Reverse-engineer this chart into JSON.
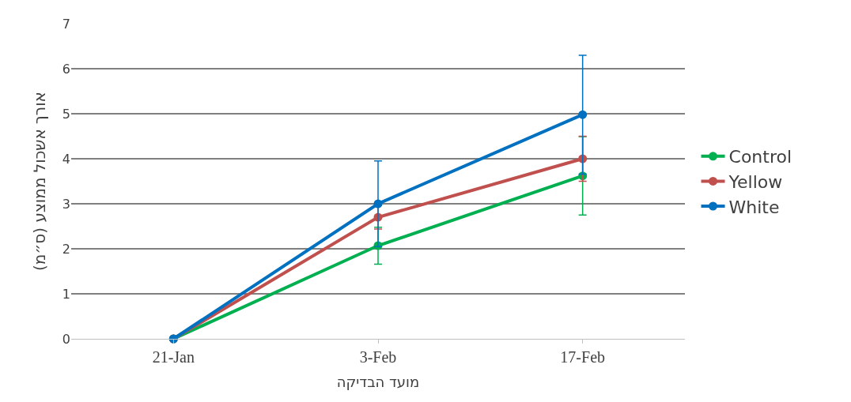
{
  "chart_data": {
    "type": "line",
    "xlabel": "מועד הבדיקה",
    "ylabel": "אורך אשכול ממוצע (ס״מ)",
    "categories": [
      "21-Jan",
      "3-Feb",
      "17-Feb"
    ],
    "series": [
      {
        "name": "Control",
        "color": "#00b050",
        "values": [
          0,
          2.07,
          3.62
        ],
        "errors": [
          null,
          0.41,
          0.87
        ]
      },
      {
        "name": "Yellow",
        "color": "#c0504d",
        "values": [
          0,
          2.7,
          4.0
        ],
        "errors": [
          null,
          0.26,
          0.5
        ]
      },
      {
        "name": "White",
        "color": "#0070c0",
        "values": [
          0,
          3.0,
          4.98
        ],
        "errors": [
          null,
          0.95,
          1.32
        ]
      }
    ],
    "ylim": [
      0,
      7
    ],
    "yticks": [
      0,
      1,
      2,
      3,
      4,
      5,
      6,
      7
    ],
    "grid": "y",
    "legend": "right",
    "marker": "circle",
    "line_style": "solid"
  }
}
